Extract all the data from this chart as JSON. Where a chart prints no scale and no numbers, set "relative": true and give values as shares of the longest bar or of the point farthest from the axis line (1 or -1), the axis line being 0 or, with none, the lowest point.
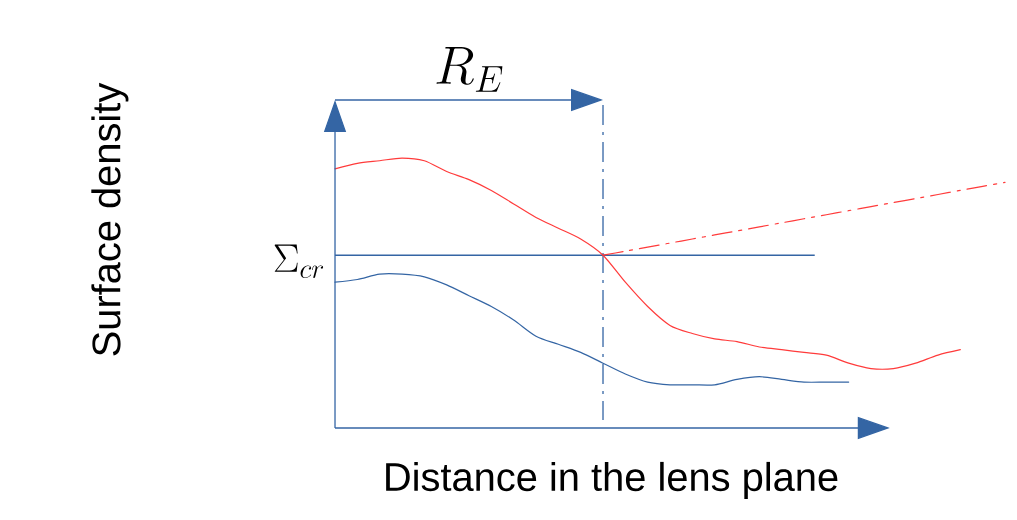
{
  "chart_data": {
    "type": "line",
    "xlabel": "Distance in the lens plane",
    "ylabel": "Surface density",
    "relative": true,
    "categories": [
      null,
      null,
      null,
      null,
      null,
      null,
      null,
      null,
      null,
      null,
      null,
      null,
      null,
      null,
      null,
      null,
      null,
      null,
      null,
      null,
      null,
      null,
      null,
      null,
      null,
      null,
      null,
      null,
      null,
      null,
      null
    ],
    "series": [
      {
        "color": "#ff3b3b",
        "values": [
          0.96,
          0.98,
          0.99,
          1.0,
          0.99,
          0.95,
          0.92,
          0.88,
          0.83,
          0.78,
          0.74,
          0.7,
          0.64,
          0.54,
          0.45,
          0.38,
          0.35,
          0.33,
          0.32,
          0.3,
          0.29,
          0.28,
          0.27,
          0.24,
          0.22,
          0.22,
          0.24,
          0.27,
          0.29,
          null,
          null
        ]
      },
      {
        "color": "#3465a4",
        "values": [
          0.54,
          0.55,
          0.57,
          0.57,
          0.56,
          0.53,
          0.49,
          0.45,
          0.4,
          0.34,
          0.31,
          0.28,
          0.24,
          0.2,
          0.17,
          0.16,
          0.16,
          0.16,
          0.18,
          0.19,
          0.18,
          0.17,
          0.17,
          0.17,
          null,
          null,
          null,
          null,
          null,
          null,
          null
        ]
      },
      {
        "color": "#ff3b3b",
        "line_style": "dashdot",
        "values": [
          null,
          null,
          null,
          null,
          null,
          null,
          null,
          null,
          null,
          null,
          null,
          null,
          0.64,
          0.655,
          0.67,
          0.685,
          0.7,
          0.715,
          0.73,
          0.745,
          0.76,
          0.775,
          0.79,
          0.805,
          0.82,
          0.835,
          0.85,
          0.865,
          0.88,
          0.895,
          0.91
        ]
      }
    ],
    "ref_lines": [
      {
        "axis": "y",
        "value": 0.64,
        "label": "\\Sigma_{cr}",
        "color": "#3465a4"
      }
    ],
    "annotations": [
      "R_{E}"
    ]
  }
}
